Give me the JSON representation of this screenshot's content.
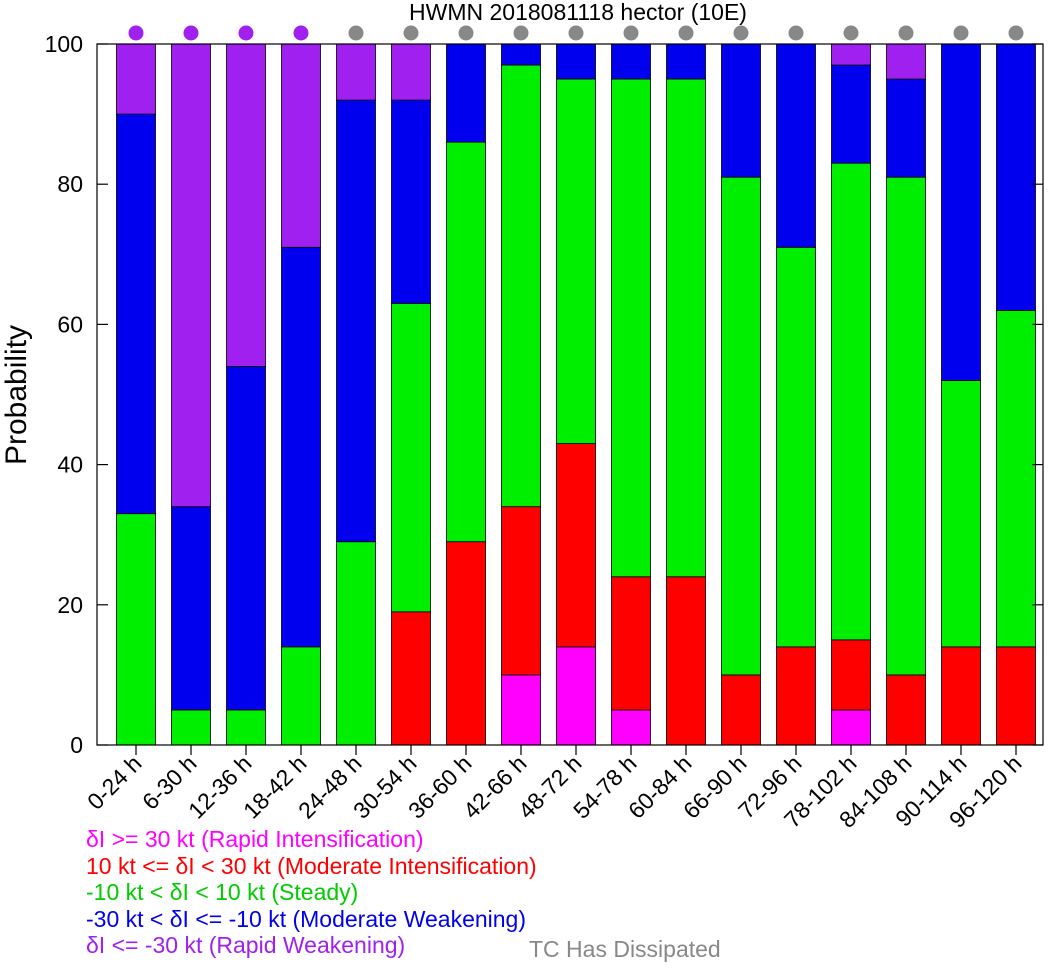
{
  "colors": {
    "ri": "#ff00ff",
    "mi": "#ff0000",
    "steady": "#00ee00",
    "mw": "#0000ee",
    "rw": "#a020f0",
    "dissipated": "#888888"
  },
  "chart_data": {
    "type": "bar",
    "stacked": true,
    "title": "HWMN 2018081118 hector (10E)",
    "xlabel": "",
    "ylabel": "Probability",
    "ylim": [
      0,
      100
    ],
    "yticks": [
      0,
      20,
      40,
      60,
      80,
      100
    ],
    "grid": false,
    "categories": [
      "0-24 h",
      "6-30 h",
      "12-36 h",
      "18-42 h",
      "24-48 h",
      "30-54 h",
      "36-60 h",
      "42-66 h",
      "48-72 h",
      "54-78 h",
      "60-84 h",
      "66-90 h",
      "72-96 h",
      "78-102 h",
      "84-108 h",
      "90-114 h",
      "96-120 h"
    ],
    "series": [
      {
        "name": "δI >= 30 kt (Rapid Intensification)",
        "color": "#ff00ff",
        "values": [
          0,
          0,
          0,
          0,
          0,
          0,
          0,
          10,
          14,
          5,
          0,
          0,
          0,
          5,
          0,
          0,
          0
        ]
      },
      {
        "name": "10 kt <= δI < 30 kt (Moderate Intensification)",
        "color": "#ff0000",
        "values": [
          0,
          0,
          0,
          0,
          0,
          19,
          29,
          24,
          29,
          19,
          24,
          10,
          14,
          10,
          10,
          14,
          14
        ]
      },
      {
        "name": "-10 kt < δI < 10 kt (Steady)",
        "color": "#00ee00",
        "values": [
          33,
          5,
          5,
          14,
          29,
          44,
          57,
          63,
          52,
          71,
          71,
          71,
          57,
          68,
          71,
          38,
          48
        ]
      },
      {
        "name": "-30 kt < δI <= -10 kt (Moderate Weakening)",
        "color": "#0000ee",
        "values": [
          57,
          29,
          49,
          57,
          63,
          29,
          14,
          3,
          5,
          5,
          5,
          19,
          29,
          14,
          14,
          48,
          38
        ]
      },
      {
        "name": "δI <= -30 kt (Rapid Weakening)",
        "color": "#a020f0",
        "values": [
          10,
          66,
          46,
          29,
          8,
          8,
          0,
          0,
          0,
          0,
          0,
          0,
          0,
          3,
          5,
          0,
          0
        ]
      }
    ],
    "status_dots": [
      "rw",
      "rw",
      "rw",
      "rw",
      "dissipated",
      "dissipated",
      "dissipated",
      "dissipated",
      "dissipated",
      "dissipated",
      "dissipated",
      "dissipated",
      "dissipated",
      "dissipated",
      "dissipated",
      "dissipated",
      "dissipated"
    ],
    "legend_placement": "bottom-left",
    "dissipated_label": "TC Has Dissipated"
  }
}
